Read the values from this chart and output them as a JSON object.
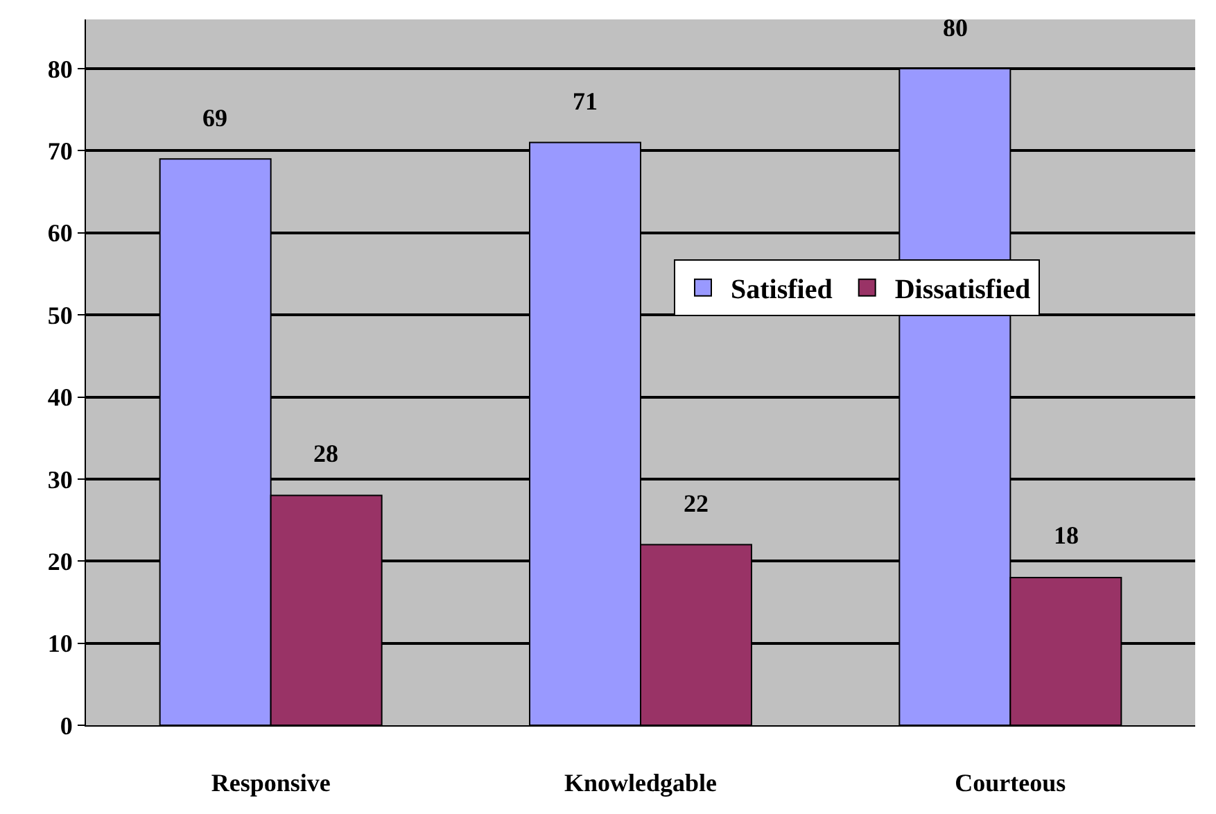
{
  "chart_data": {
    "type": "bar",
    "categories": [
      "Responsive",
      "Knowledgable",
      "Courteous"
    ],
    "series": [
      {
        "name": "Satisfied",
        "color": "#9999ff",
        "values": [
          69,
          71,
          80
        ]
      },
      {
        "name": "Dissatisfied",
        "color": "#993366",
        "values": [
          28,
          22,
          18
        ]
      }
    ],
    "ylim": [
      0,
      86
    ],
    "yticks": [
      0,
      10,
      20,
      30,
      40,
      50,
      60,
      70,
      80
    ],
    "grid": "y",
    "legend": "right",
    "data_labels": true
  }
}
